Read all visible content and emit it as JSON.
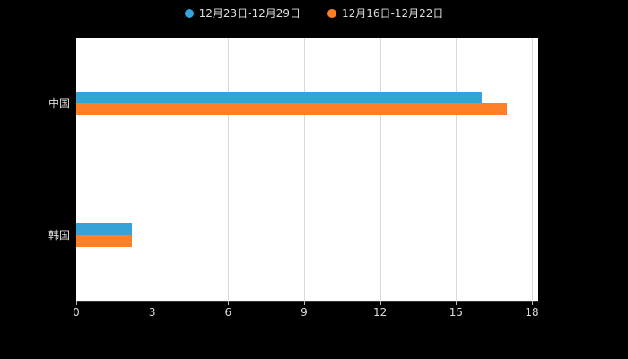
{
  "chart": {
    "legend": [
      {
        "label": "12月23日-12月29日",
        "color": "#36a2da"
      },
      {
        "label": "12月16日-12月22日",
        "color": "#ff7f27"
      }
    ]
  },
  "chart_data": {
    "type": "bar",
    "orientation": "horizontal",
    "title": "",
    "xlabel": "",
    "ylabel": "",
    "categories": [
      "中国",
      "韩国"
    ],
    "series": [
      {
        "name": "12月23日-12月29日",
        "color": "#36a2da",
        "values": [
          16,
          2.2
        ]
      },
      {
        "name": "12月16日-12月22日",
        "color": "#ff7f27",
        "values": [
          17,
          2.2
        ]
      }
    ],
    "xlim": [
      0,
      18
    ],
    "xticks": [
      0,
      3,
      6,
      9,
      12,
      15,
      18
    ],
    "grid": true,
    "legend_position": "top",
    "background": "#000000",
    "plot_background": "#ffffff"
  }
}
